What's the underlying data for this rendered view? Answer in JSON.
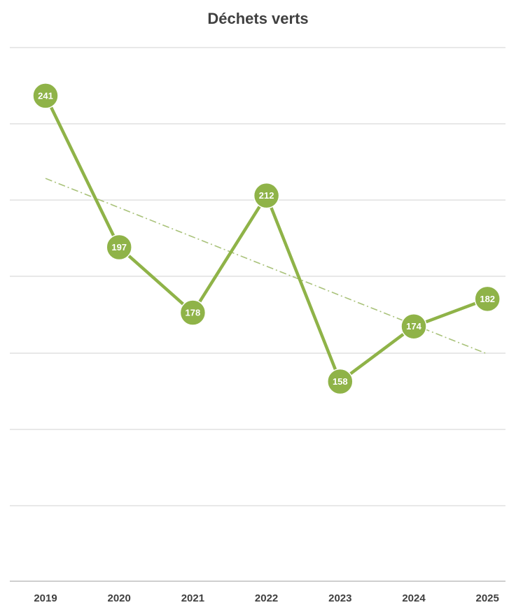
{
  "chart_data": {
    "type": "line",
    "title": "Déchets verts",
    "categories": [
      "2019",
      "2020",
      "2021",
      "2022",
      "2023",
      "2024",
      "2025"
    ],
    "values": [
      241,
      197,
      178,
      212,
      158,
      174,
      182
    ],
    "trendline": {
      "style": "dash-dot",
      "from": 217,
      "to": 166
    },
    "ylim": [
      100,
      255
    ],
    "grid": true,
    "legend": "none",
    "colors": {
      "series": "#8fb348",
      "trendline": "#a9c27a",
      "grid": "#d9d9d9",
      "axis": "#bfbfbf",
      "label_text": "#ffffff"
    }
  }
}
